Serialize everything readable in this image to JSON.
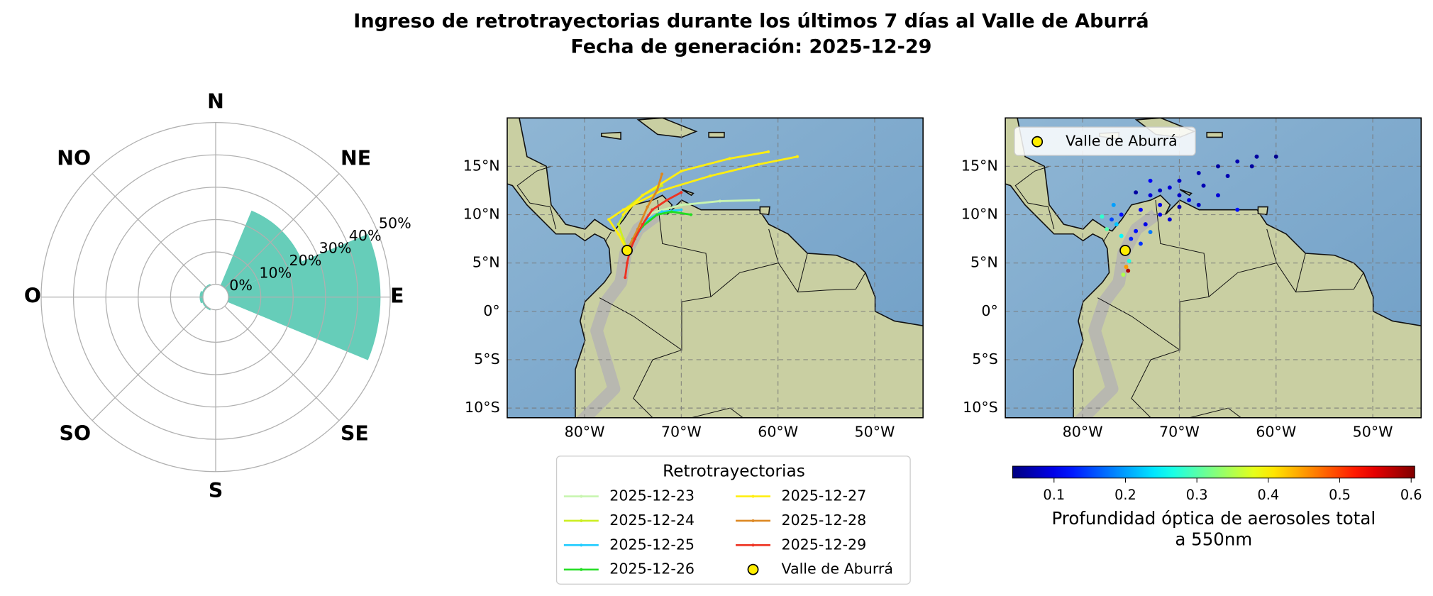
{
  "figure_title": [
    "Ingreso de retrotrayectorias durante los últimos 7 días al Valle de Aburrá",
    "Fecha de generación: 2025-12-29"
  ],
  "chart_data": [
    {
      "type": "polar_bar",
      "categories": [
        "N",
        "NE",
        "E",
        "SE",
        "S",
        "SO",
        "O",
        "NO"
      ],
      "values": [
        0,
        25,
        47,
        0,
        0,
        0.5,
        1,
        0.5
      ],
      "color": "#66cdb9",
      "ylim": [
        0,
        50
      ],
      "yticks": [
        {
          "value": 0,
          "label": "0%"
        },
        {
          "value": 10,
          "label": "10%"
        },
        {
          "value": 20,
          "label": "20%"
        },
        {
          "value": 30,
          "label": "30%"
        },
        {
          "value": 40,
          "label": "40%"
        },
        {
          "value": 50,
          "label": "50%"
        }
      ],
      "grid": true
    },
    {
      "type": "line_map",
      "xlim": [
        -88,
        -45
      ],
      "ylim": [
        -11,
        20
      ],
      "xticks": [
        {
          "value": -80,
          "label": "80°W"
        },
        {
          "value": -70,
          "label": "70°W"
        },
        {
          "value": -60,
          "label": "60°W"
        },
        {
          "value": -50,
          "label": "50°W"
        }
      ],
      "yticks": [
        {
          "value": -10,
          "label": "10°S"
        },
        {
          "value": -5,
          "label": "5°S"
        },
        {
          "value": 0,
          "label": "0°"
        },
        {
          "value": 5,
          "label": "5°N"
        },
        {
          "value": 10,
          "label": "10°N"
        },
        {
          "value": 15,
          "label": "15°N"
        }
      ],
      "grid": true,
      "legend_title": "Retrotrayectorias",
      "series": [
        {
          "name": "2025-12-23",
          "color": "#c8f5b0",
          "x": [
            -62,
            -66,
            -70,
            -73,
            -74.5,
            -75.6
          ],
          "values": [
            11.5,
            11.4,
            11,
            10.2,
            8.5,
            6.3
          ]
        },
        {
          "name": "2025-12-24",
          "color": "#ccee22",
          "x": [
            -72,
            -74,
            -75.5,
            -76.5,
            -76,
            -75.6
          ],
          "values": [
            13,
            12,
            10.8,
            9,
            7.5,
            6.3
          ]
        },
        {
          "name": "2025-12-25",
          "color": "#22ccff",
          "x": [
            -70,
            -72,
            -73.5,
            -74.5,
            -75.6
          ],
          "values": [
            10.5,
            10.3,
            9.5,
            8,
            6.3
          ]
        },
        {
          "name": "2025-12-26",
          "color": "#22dd22",
          "x": [
            -69,
            -71,
            -72.5,
            -74,
            -75,
            -75.6
          ],
          "values": [
            10,
            10.3,
            10,
            8.8,
            7.5,
            6.3
          ]
        },
        {
          "name": "2025-12-27",
          "color": "#ffee11",
          "x": [
            -58,
            -62,
            -67,
            -72,
            -76,
            -77.5,
            -76.5,
            -75.6,
            null,
            -61,
            -65,
            -70,
            -74,
            -76
          ],
          "values": [
            16,
            15.2,
            14,
            12.5,
            10.5,
            9.5,
            8,
            6.3,
            null,
            16.5,
            15.8,
            14.5,
            12,
            10
          ]
        },
        {
          "name": "2025-12-28",
          "color": "#dd8822",
          "x": [
            -72,
            -72.5,
            -73.5,
            -74.5,
            -75.6
          ],
          "values": [
            14.2,
            12.5,
            10.8,
            8.5,
            6.3
          ]
        },
        {
          "name": "2025-12-29",
          "color": "#ee3322",
          "x": [
            -70,
            -71.5,
            -73,
            -74,
            -74.8,
            -75.3,
            -75.6,
            -75.8
          ],
          "values": [
            12.3,
            11.5,
            10.5,
            9,
            7.5,
            6.3,
            5,
            3.5
          ]
        }
      ],
      "site": {
        "name": "Valle de Aburrá",
        "x": -75.6,
        "y": 6.3,
        "color": "#ffee00"
      }
    },
    {
      "type": "scatter_map",
      "xlim": [
        -88,
        -45
      ],
      "ylim": [
        -11,
        20
      ],
      "xticks": [
        {
          "value": -80,
          "label": "80°W"
        },
        {
          "value": -70,
          "label": "70°W"
        },
        {
          "value": -60,
          "label": "60°W"
        },
        {
          "value": -50,
          "label": "50°W"
        }
      ],
      "yticks": [
        {
          "value": -10,
          "label": "10°S"
        },
        {
          "value": -5,
          "label": "5°S"
        },
        {
          "value": 0,
          "label": "0°"
        },
        {
          "value": 5,
          "label": "5°N"
        },
        {
          "value": 10,
          "label": "10°N"
        },
        {
          "value": 15,
          "label": "15°N"
        }
      ],
      "grid": true,
      "series": [
        {
          "x": [
            -62,
            -64,
            -66,
            -68,
            -70,
            -72,
            -60,
            -62.5,
            -65,
            -67.5,
            -70,
            -66,
            -69,
            -72,
            -73,
            -74,
            -76,
            -77,
            -78,
            -77.5,
            -76.5,
            -72,
            -71,
            -73.5,
            -74.5,
            -75,
            -76,
            -74,
            -75.2,
            -75.5,
            -75.3,
            -75.8,
            -70,
            -68,
            -71,
            -73,
            -74.5,
            -73,
            -76.8,
            -64
          ],
          "values": [
            16,
            15.5,
            15,
            14.3,
            13.5,
            12.5,
            16,
            15,
            14,
            13,
            12,
            12,
            11.5,
            11,
            12,
            10.5,
            10,
            9.5,
            9.8,
            8.5,
            9,
            10,
            9.5,
            9,
            8.3,
            7.5,
            7.8,
            7,
            5.2,
            4.6,
            4.2,
            3.8,
            10.8,
            11,
            12.8,
            13.5,
            12.3,
            8.2,
            11,
            10.5
          ],
          "c": [
            0.06,
            0.07,
            0.06,
            0.07,
            0.08,
            0.08,
            0.05,
            0.06,
            0.07,
            0.07,
            0.08,
            0.09,
            0.1,
            0.1,
            0.09,
            0.11,
            0.12,
            0.15,
            0.28,
            0.3,
            0.22,
            0.1,
            0.09,
            0.1,
            0.12,
            0.13,
            0.25,
            0.14,
            0.27,
            0.45,
            0.58,
            0.35,
            0.07,
            0.08,
            0.09,
            0.11,
            0.06,
            0.18,
            0.2,
            0.12
          ]
        }
      ],
      "colorbar": {
        "label": [
          "Profundidad óptica de aerosoles total",
          "a 550nm"
        ],
        "lim": [
          0.042,
          0.605
        ],
        "ticks": [
          0.1,
          0.2,
          0.3,
          0.4,
          0.5,
          0.6
        ]
      },
      "site": {
        "name": "Valle de Aburrá",
        "x": -75.6,
        "y": 6.3,
        "color": "#ffee00"
      }
    }
  ]
}
